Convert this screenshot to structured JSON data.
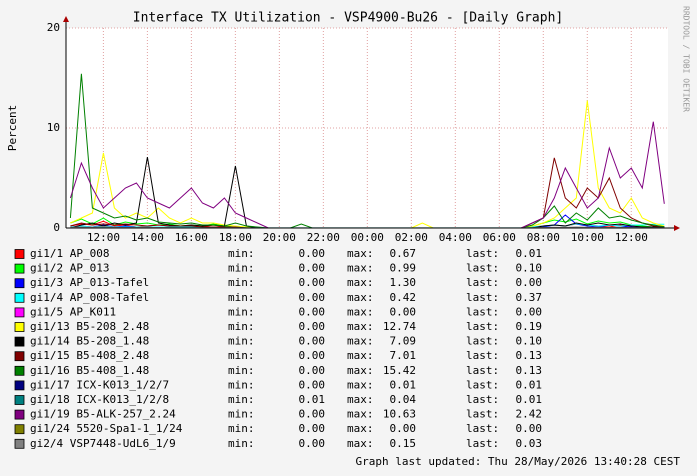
{
  "chart_data": {
    "type": "line",
    "title": "Interface TX Utilization - VSP4900-Bu26 - [Daily Graph]",
    "y_label": "Percent",
    "side_text": "RRDTOOL / TOBI OETIKER",
    "footer": "Graph last updated: Thu 28/May/2026 13:40:28 CEST",
    "stat_labels": [
      "min:",
      "max:",
      "last:"
    ],
    "grid": true,
    "xlim": [
      10.3,
      37.67
    ],
    "ylim": [
      0,
      20
    ],
    "yticks": [
      0,
      10,
      20
    ],
    "xticks": [
      {
        "value": 12,
        "label": "12:00"
      },
      {
        "value": 14,
        "label": "14:00"
      },
      {
        "value": 16,
        "label": "16:00"
      },
      {
        "value": 18,
        "label": "18:00"
      },
      {
        "value": 20,
        "label": "20:00"
      },
      {
        "value": 22,
        "label": "22:00"
      },
      {
        "value": 24,
        "label": "00:00"
      },
      {
        "value": 26,
        "label": "02:00"
      },
      {
        "value": 28,
        "label": "04:00"
      },
      {
        "value": 30,
        "label": "06:00"
      },
      {
        "value": 32,
        "label": "08:00"
      },
      {
        "value": 34,
        "label": "10:00"
      },
      {
        "value": 36,
        "label": "12:00"
      }
    ],
    "x": [
      10.5,
      11,
      11.5,
      12,
      12.5,
      13,
      13.5,
      14,
      14.5,
      15,
      15.5,
      16,
      16.5,
      17,
      17.5,
      18,
      18.5,
      19,
      19.5,
      20,
      20.5,
      21,
      21.5,
      22,
      22.5,
      23,
      23.5,
      24,
      24.5,
      25,
      25.5,
      26,
      26.5,
      27,
      27.5,
      28,
      28.5,
      29,
      29.5,
      30,
      30.5,
      31,
      31.5,
      32,
      32.5,
      33,
      33.5,
      34,
      34.5,
      35,
      35.5,
      36,
      36.5,
      37,
      37.5
    ],
    "series": [
      {
        "name": "gi1/1 AP_008",
        "color": "#ff0000",
        "min": "0.00",
        "max": "0.67",
        "last": "0.01",
        "values": [
          0.2,
          0.4,
          0.3,
          0.67,
          0.2,
          0.3,
          0.1,
          0.2,
          0.3,
          0.2,
          0.1,
          0.2,
          0.1,
          0.3,
          0.1,
          0.1,
          0.1,
          0,
          0,
          0,
          0,
          0,
          0,
          0,
          0,
          0,
          0,
          0,
          0,
          0,
          0,
          0,
          0,
          0,
          0,
          0,
          0,
          0,
          0,
          0,
          0,
          0,
          0.1,
          0.2,
          0.3,
          0.2,
          0.4,
          0.3,
          0.2,
          0.1,
          0.3,
          0.2,
          0.1,
          0,
          0.01
        ]
      },
      {
        "name": "gi1/2 AP_013",
        "color": "#00ff00",
        "min": "0.00",
        "max": "0.99",
        "last": "0.10",
        "values": [
          0.5,
          0.9,
          0.4,
          0.99,
          0.3,
          0.6,
          0.4,
          0.5,
          0.3,
          0.4,
          0.2,
          0.3,
          0.2,
          0.4,
          0.2,
          0.1,
          0.1,
          0,
          0,
          0,
          0,
          0,
          0,
          0,
          0,
          0,
          0,
          0,
          0,
          0,
          0,
          0,
          0,
          0,
          0,
          0,
          0,
          0,
          0,
          0,
          0,
          0,
          0.2,
          0.5,
          0.8,
          0.6,
          0.9,
          0.4,
          0.7,
          0.5,
          0.6,
          0.3,
          0.2,
          0.1,
          0.1
        ]
      },
      {
        "name": "gi1/3 AP_013-Tafel",
        "color": "#0000ff",
        "min": "0.00",
        "max": "1.30",
        "last": "0.00",
        "values": [
          0,
          0.2,
          0.1,
          0.3,
          0.1,
          0.2,
          0.1,
          0.1,
          0.1,
          0.1,
          0,
          0.1,
          0,
          0.1,
          0,
          0,
          0,
          0,
          0,
          0,
          0,
          0,
          0,
          0,
          0,
          0,
          0,
          0,
          0,
          0,
          0,
          0,
          0,
          0,
          0,
          0,
          0,
          0,
          0,
          0,
          0,
          0,
          0,
          0.1,
          0.3,
          1.3,
          0.4,
          0.2,
          0.1,
          0.3,
          0.2,
          0.1,
          0,
          0,
          0
        ]
      },
      {
        "name": "gi1/4 AP_008-Tafel",
        "color": "#00ffff",
        "min": "0.00",
        "max": "0.42",
        "last": "0.37",
        "values": [
          0.1,
          0.2,
          0.1,
          0.2,
          0.1,
          0.1,
          0.1,
          0.1,
          0.1,
          0.1,
          0.1,
          0.1,
          0.1,
          0.1,
          0.1,
          0.1,
          0,
          0,
          0,
          0,
          0,
          0,
          0,
          0,
          0,
          0,
          0,
          0,
          0,
          0,
          0,
          0,
          0,
          0,
          0,
          0,
          0,
          0,
          0,
          0,
          0,
          0,
          0.1,
          0.2,
          0.3,
          0.2,
          0.42,
          0.3,
          0.2,
          0.3,
          0.2,
          0.3,
          0.3,
          0.37,
          0.37
        ]
      },
      {
        "name": "gi1/5 AP_K011",
        "color": "#ff00ff",
        "min": "0.00",
        "max": "0.00",
        "last": "0.00",
        "values": [
          0,
          0,
          0,
          0,
          0,
          0,
          0,
          0,
          0,
          0,
          0,
          0,
          0,
          0,
          0,
          0,
          0,
          0,
          0,
          0,
          0,
          0,
          0,
          0,
          0,
          0,
          0,
          0,
          0,
          0,
          0,
          0,
          0,
          0,
          0,
          0,
          0,
          0,
          0,
          0,
          0,
          0,
          0,
          0,
          0,
          0,
          0,
          0,
          0,
          0,
          0,
          0,
          0,
          0,
          0
        ]
      },
      {
        "name": "gi1/13 B5-208_2.48",
        "color": "#ffff00",
        "min": "0.00",
        "max": "12.74",
        "last": "0.19",
        "values": [
          0.5,
          1,
          1.5,
          7.5,
          2,
          1,
          1.5,
          1,
          2,
          1,
          0.5,
          1,
          0.5,
          0.5,
          0.3,
          0.2,
          0.1,
          0,
          0,
          0,
          0,
          0,
          0,
          0,
          0,
          0,
          0,
          0,
          0,
          0,
          0,
          0,
          0.5,
          0,
          0,
          0,
          0,
          0,
          0,
          0,
          0,
          0,
          0.2,
          0.5,
          1,
          2,
          3,
          12.74,
          4,
          2,
          1.5,
          3,
          1,
          0.5,
          0.19
        ]
      },
      {
        "name": "gi1/14 B5-208_1.48",
        "color": "#000000",
        "min": "0.00",
        "max": "7.09",
        "last": "0.10",
        "values": [
          0,
          0.3,
          0.5,
          0.2,
          0.5,
          0.3,
          0.5,
          7.09,
          0.5,
          0.3,
          0.2,
          0.3,
          0.2,
          0.3,
          0.2,
          6.2,
          0.2,
          0,
          0,
          0,
          0,
          0,
          0,
          0,
          0,
          0,
          0,
          0,
          0,
          0,
          0,
          0,
          0,
          0,
          0,
          0,
          0,
          0,
          0,
          0,
          0,
          0,
          0,
          0.2,
          0.3,
          0.2,
          0.5,
          0.3,
          0.5,
          0.3,
          0.4,
          0.2,
          0.1,
          0.1,
          0.1
        ]
      },
      {
        "name": "gi1/15 B5-408_2.48",
        "color": "#800000",
        "min": "0.00",
        "max": "7.01",
        "last": "0.13",
        "values": [
          0.2,
          0.5,
          0.3,
          0.4,
          0.3,
          0.4,
          0.3,
          0.2,
          0.3,
          0.2,
          0.2,
          0.2,
          0.1,
          0.1,
          0.1,
          0.1,
          0,
          0,
          0,
          0,
          0,
          0,
          0,
          0,
          0,
          0,
          0,
          0,
          0,
          0,
          0,
          0,
          0,
          0,
          0,
          0,
          0,
          0,
          0,
          0,
          0,
          0,
          0.5,
          1,
          7.01,
          3,
          2,
          4,
          3,
          5,
          2,
          1,
          0.5,
          0.2,
          0.13
        ]
      },
      {
        "name": "gi1/16 B5-408_1.48",
        "color": "#008000",
        "min": "0.00",
        "max": "15.42",
        "last": "0.13",
        "values": [
          1,
          15.42,
          2,
          1.5,
          1,
          1.2,
          0.8,
          1,
          0.6,
          0.5,
          0.4,
          0.5,
          0.3,
          0.3,
          0.2,
          0.5,
          0.2,
          0.1,
          0,
          0,
          0,
          0.4,
          0,
          0,
          0,
          0,
          0,
          0,
          0,
          0,
          0,
          0,
          0,
          0,
          0,
          0,
          0,
          0,
          0,
          0,
          0,
          0,
          0.3,
          1,
          2.2,
          0.5,
          1.5,
          0.8,
          2,
          1,
          1.2,
          0.8,
          0.5,
          0.3,
          0.13
        ]
      },
      {
        "name": "gi1/17 ICX-K013_1/2/7",
        "color": "#000080",
        "min": "0.00",
        "max": "0.01",
        "last": "0.01",
        "values": [
          0,
          0,
          0,
          0,
          0,
          0,
          0,
          0,
          0,
          0,
          0,
          0,
          0,
          0,
          0,
          0,
          0,
          0,
          0,
          0,
          0,
          0,
          0,
          0,
          0,
          0,
          0,
          0,
          0,
          0,
          0,
          0,
          0,
          0,
          0,
          0,
          0,
          0,
          0,
          0,
          0,
          0,
          0,
          0,
          0,
          0,
          0,
          0,
          0,
          0,
          0,
          0,
          0,
          0.01,
          0.01
        ]
      },
      {
        "name": "gi1/18 ICX-K013_1/2/8",
        "color": "#008080",
        "min": "0.01",
        "max": "0.04",
        "last": "0.01",
        "values": [
          0.02,
          0.03,
          0.02,
          0.04,
          0.02,
          0.02,
          0.02,
          0.02,
          0.02,
          0.02,
          0.01,
          0.01,
          0.01,
          0.01,
          0.01,
          0.01,
          0.01,
          0.01,
          0.01,
          0.01,
          0.01,
          0.01,
          0.01,
          0.01,
          0.01,
          0.01,
          0.01,
          0.01,
          0.01,
          0.01,
          0.01,
          0.01,
          0.01,
          0.01,
          0.01,
          0.01,
          0.01,
          0.01,
          0.01,
          0.01,
          0.01,
          0.01,
          0.02,
          0.02,
          0.03,
          0.02,
          0.03,
          0.02,
          0.02,
          0.02,
          0.02,
          0.02,
          0.01,
          0.01,
          0.01
        ]
      },
      {
        "name": "gi1/19 B5-ALK-257_2.24",
        "color": "#800080",
        "min": "0.00",
        "max": "10.63",
        "last": "2.42",
        "values": [
          3,
          6.5,
          4,
          2,
          3,
          4,
          4.5,
          3,
          2.5,
          2,
          3,
          4,
          2.5,
          2,
          3,
          1.5,
          1,
          0.5,
          0,
          0,
          0,
          0,
          0,
          0,
          0,
          0,
          0,
          0,
          0,
          0,
          0,
          0,
          0,
          0,
          0,
          0,
          0,
          0,
          0,
          0,
          0,
          0,
          0.5,
          1,
          3,
          6,
          4,
          2,
          3,
          8,
          5,
          6,
          4,
          10.63,
          2.42
        ]
      },
      {
        "name": "gi1/24 5520-Spa1-1_1/24",
        "color": "#808000",
        "min": "0.00",
        "max": "0.00",
        "last": "0.00",
        "values": [
          0,
          0,
          0,
          0,
          0,
          0,
          0,
          0,
          0,
          0,
          0,
          0,
          0,
          0,
          0,
          0,
          0,
          0,
          0,
          0,
          0,
          0,
          0,
          0,
          0,
          0,
          0,
          0,
          0,
          0,
          0,
          0,
          0,
          0,
          0,
          0,
          0,
          0,
          0,
          0,
          0,
          0,
          0,
          0,
          0,
          0,
          0,
          0,
          0,
          0,
          0,
          0,
          0,
          0,
          0
        ]
      },
      {
        "name": "gi2/4 VSP7448-UdL6_1/9",
        "color": "#808080",
        "min": "0.00",
        "max": "0.15",
        "last": "0.03",
        "values": [
          0.05,
          0.1,
          0.08,
          0.15,
          0.06,
          0.05,
          0.04,
          0.06,
          0.05,
          0.04,
          0.03,
          0.03,
          0.02,
          0.02,
          0.02,
          0.02,
          0.01,
          0.01,
          0,
          0,
          0,
          0,
          0,
          0,
          0,
          0,
          0,
          0,
          0,
          0,
          0,
          0,
          0,
          0,
          0,
          0,
          0,
          0,
          0,
          0,
          0,
          0,
          0.02,
          0.05,
          0.08,
          0.06,
          0.1,
          0.07,
          0.06,
          0.05,
          0.06,
          0.04,
          0.03,
          0.03,
          0.03
        ]
      }
    ]
  }
}
